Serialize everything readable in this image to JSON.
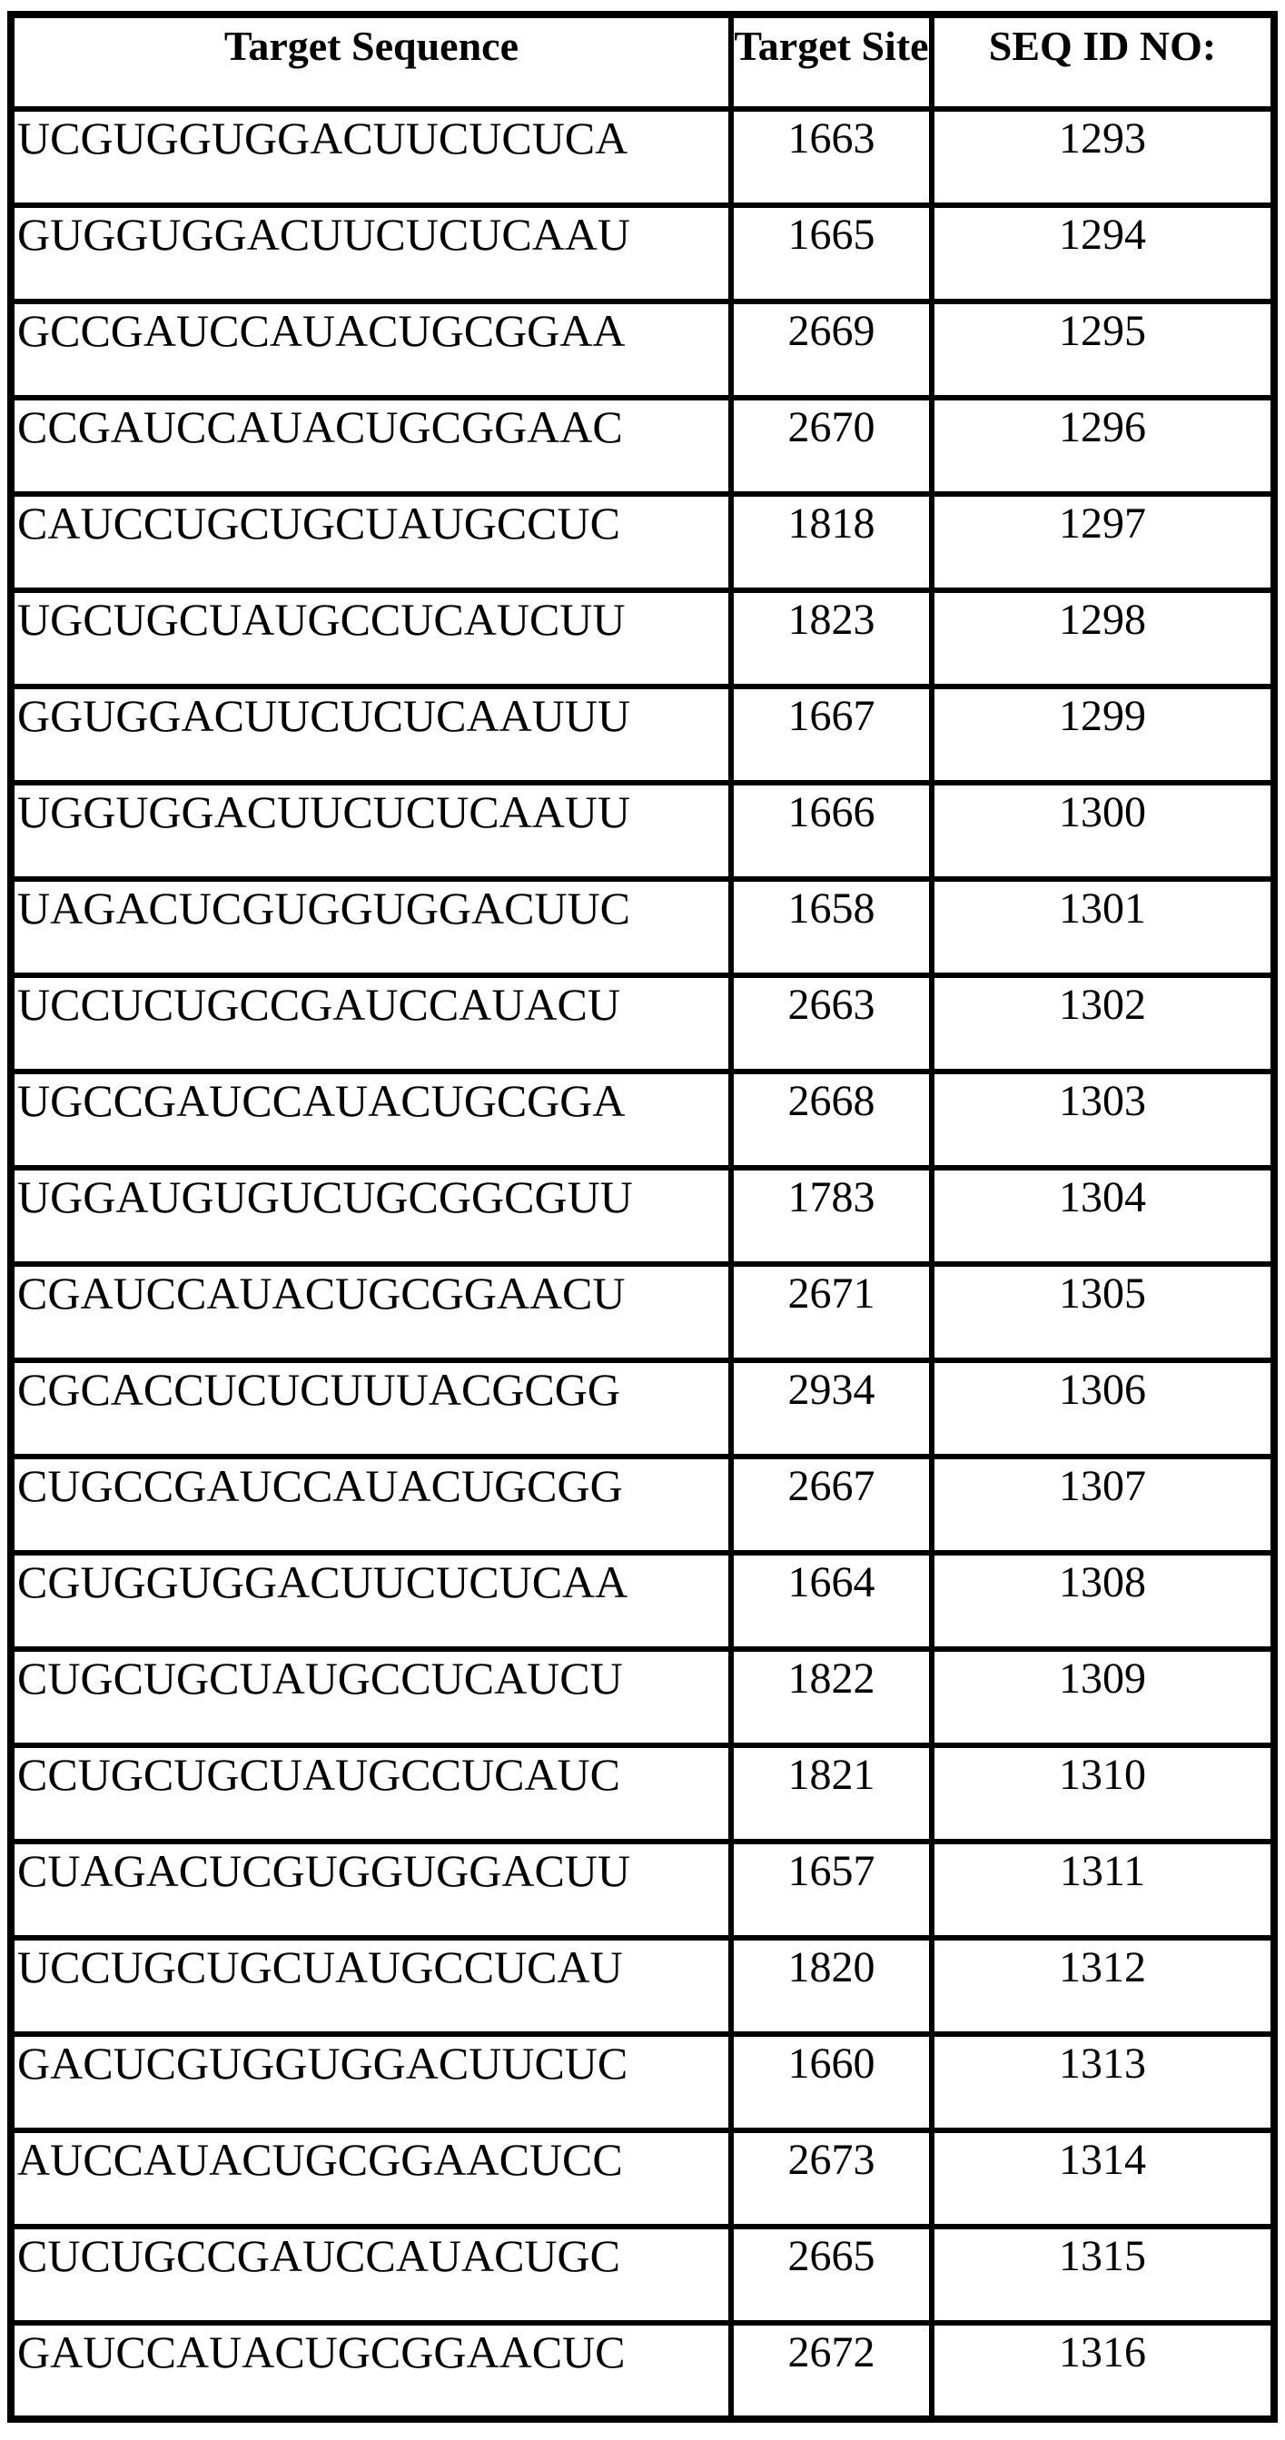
{
  "table": {
    "headers": {
      "sequence": "Target Sequence",
      "site": "Target Site",
      "seq_id": "SEQ ID NO:"
    },
    "rows": [
      {
        "sequence": "UCGUGGUGGACUUCUCUCA",
        "site": "1663",
        "seq_id": "1293"
      },
      {
        "sequence": "GUGGUGGACUUCUCUCAAU",
        "site": "1665",
        "seq_id": "1294"
      },
      {
        "sequence": "GCCGAUCCAUACUGCGGAA",
        "site": "2669",
        "seq_id": "1295"
      },
      {
        "sequence": "CCGAUCCAUACUGCGGAAC",
        "site": "2670",
        "seq_id": "1296"
      },
      {
        "sequence": "CAUCCUGCUGCUAUGCCUC",
        "site": "1818",
        "seq_id": "1297"
      },
      {
        "sequence": "UGCUGCUAUGCCUCAUCUU",
        "site": "1823",
        "seq_id": "1298"
      },
      {
        "sequence": "GGUGGACUUCUCUCAAUUU",
        "site": "1667",
        "seq_id": "1299"
      },
      {
        "sequence": "UGGUGGACUUCUCUCAAUU",
        "site": "1666",
        "seq_id": "1300"
      },
      {
        "sequence": "UAGACUCGUGGUGGACUUC",
        "site": "1658",
        "seq_id": "1301"
      },
      {
        "sequence": "UCCUCUGCCGAUCCAUACU",
        "site": "2663",
        "seq_id": "1302"
      },
      {
        "sequence": "UGCCGAUCCAUACUGCGGA",
        "site": "2668",
        "seq_id": "1303"
      },
      {
        "sequence": "UGGAUGUGUCUGCGGCGUU",
        "site": "1783",
        "seq_id": "1304"
      },
      {
        "sequence": "CGAUCCAUACUGCGGAACU",
        "site": "2671",
        "seq_id": "1305"
      },
      {
        "sequence": "CGCACCUCUCUUUACGCGG",
        "site": "2934",
        "seq_id": "1306"
      },
      {
        "sequence": "CUGCCGAUCCAUACUGCGG",
        "site": "2667",
        "seq_id": "1307"
      },
      {
        "sequence": "CGUGGUGGACUUCUCUCAA",
        "site": "1664",
        "seq_id": "1308"
      },
      {
        "sequence": "CUGCUGCUAUGCCUCAUCU",
        "site": "1822",
        "seq_id": "1309"
      },
      {
        "sequence": "CCUGCUGCUAUGCCUCAUC",
        "site": "1821",
        "seq_id": "1310"
      },
      {
        "sequence": "CUAGACUCGUGGUGGACUU",
        "site": "1657",
        "seq_id": "1311"
      },
      {
        "sequence": "UCCUGCUGCUAUGCCUCAU",
        "site": "1820",
        "seq_id": "1312"
      },
      {
        "sequence": "GACUCGUGGUGGACUUCUC",
        "site": "1660",
        "seq_id": "1313"
      },
      {
        "sequence": "AUCCAUACUGCGGAACUCC",
        "site": "2673",
        "seq_id": "1314"
      },
      {
        "sequence": "CUCUGCCGAUCCAUACUGC",
        "site": "2665",
        "seq_id": "1315"
      },
      {
        "sequence": "GAUCCAUACUGCGGAACUC",
        "site": "2672",
        "seq_id": "1316"
      }
    ]
  },
  "colors": {
    "border": "#000000",
    "background": "#ffffff",
    "text": "#000000"
  }
}
